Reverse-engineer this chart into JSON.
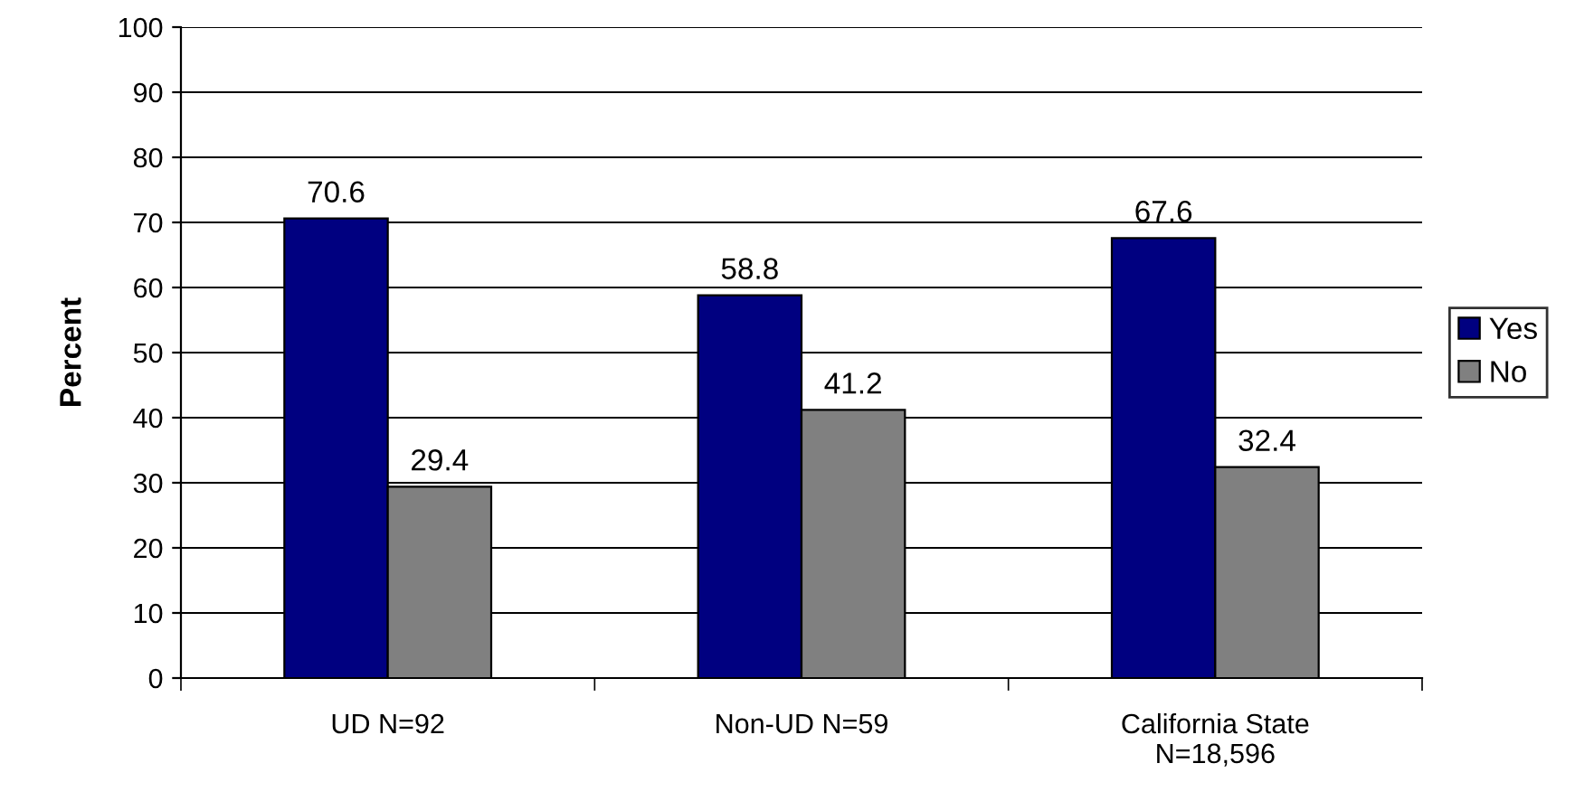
{
  "chart_data": {
    "type": "bar",
    "ylabel": "Percent",
    "categories": [
      "UD N=92",
      "Non-UD N=59",
      "California State\nN=18,596"
    ],
    "series": [
      {
        "name": "Yes",
        "color": "#000080",
        "values": [
          70.6,
          58.8,
          67.6
        ]
      },
      {
        "name": "No",
        "color": "#808080",
        "values": [
          29.4,
          41.2,
          32.4
        ]
      }
    ],
    "ylim": [
      0,
      100
    ],
    "yticks": [
      0,
      10,
      20,
      30,
      40,
      50,
      60,
      70,
      80,
      90,
      100
    ],
    "grid": "y",
    "legend": "right",
    "data_labels": true
  }
}
